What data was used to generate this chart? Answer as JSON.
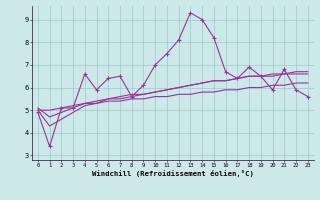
{
  "xlabel": "Windchill (Refroidissement éolien,°C)",
  "background_color": "#cce8e8",
  "grid_color": "#99cccc",
  "line_color": "#993399",
  "xlim": [
    -0.5,
    23.5
  ],
  "ylim": [
    2.8,
    9.6
  ],
  "xticks": [
    0,
    1,
    2,
    3,
    4,
    5,
    6,
    7,
    8,
    9,
    10,
    11,
    12,
    13,
    14,
    15,
    16,
    17,
    18,
    19,
    20,
    21,
    22,
    23
  ],
  "yticks": [
    3,
    4,
    5,
    6,
    7,
    8,
    9
  ],
  "hours": [
    0,
    1,
    2,
    3,
    4,
    5,
    6,
    7,
    8,
    9,
    10,
    11,
    12,
    13,
    14,
    15,
    16,
    17,
    18,
    19,
    20,
    21,
    22,
    23
  ],
  "line1": [
    4.9,
    3.4,
    5.1,
    5.1,
    6.6,
    5.9,
    6.4,
    6.5,
    5.6,
    6.1,
    7.0,
    7.5,
    8.1,
    9.3,
    9.0,
    8.2,
    6.7,
    6.4,
    6.9,
    6.5,
    5.9,
    6.8,
    5.9,
    5.6
  ],
  "line2": [
    5.0,
    5.0,
    5.1,
    5.2,
    5.3,
    5.3,
    5.4,
    5.4,
    5.5,
    5.5,
    5.6,
    5.6,
    5.7,
    5.7,
    5.8,
    5.8,
    5.9,
    5.9,
    6.0,
    6.0,
    6.1,
    6.1,
    6.2,
    6.2
  ],
  "line3": [
    5.1,
    4.7,
    4.9,
    5.1,
    5.3,
    5.4,
    5.5,
    5.5,
    5.6,
    5.7,
    5.8,
    5.9,
    6.0,
    6.1,
    6.2,
    6.3,
    6.3,
    6.4,
    6.5,
    6.5,
    6.6,
    6.6,
    6.7,
    6.7
  ],
  "line4": [
    5.0,
    4.3,
    4.6,
    4.9,
    5.2,
    5.3,
    5.5,
    5.6,
    5.7,
    5.7,
    5.8,
    5.9,
    6.0,
    6.1,
    6.2,
    6.3,
    6.3,
    6.4,
    6.5,
    6.5,
    6.5,
    6.6,
    6.6,
    6.6
  ]
}
